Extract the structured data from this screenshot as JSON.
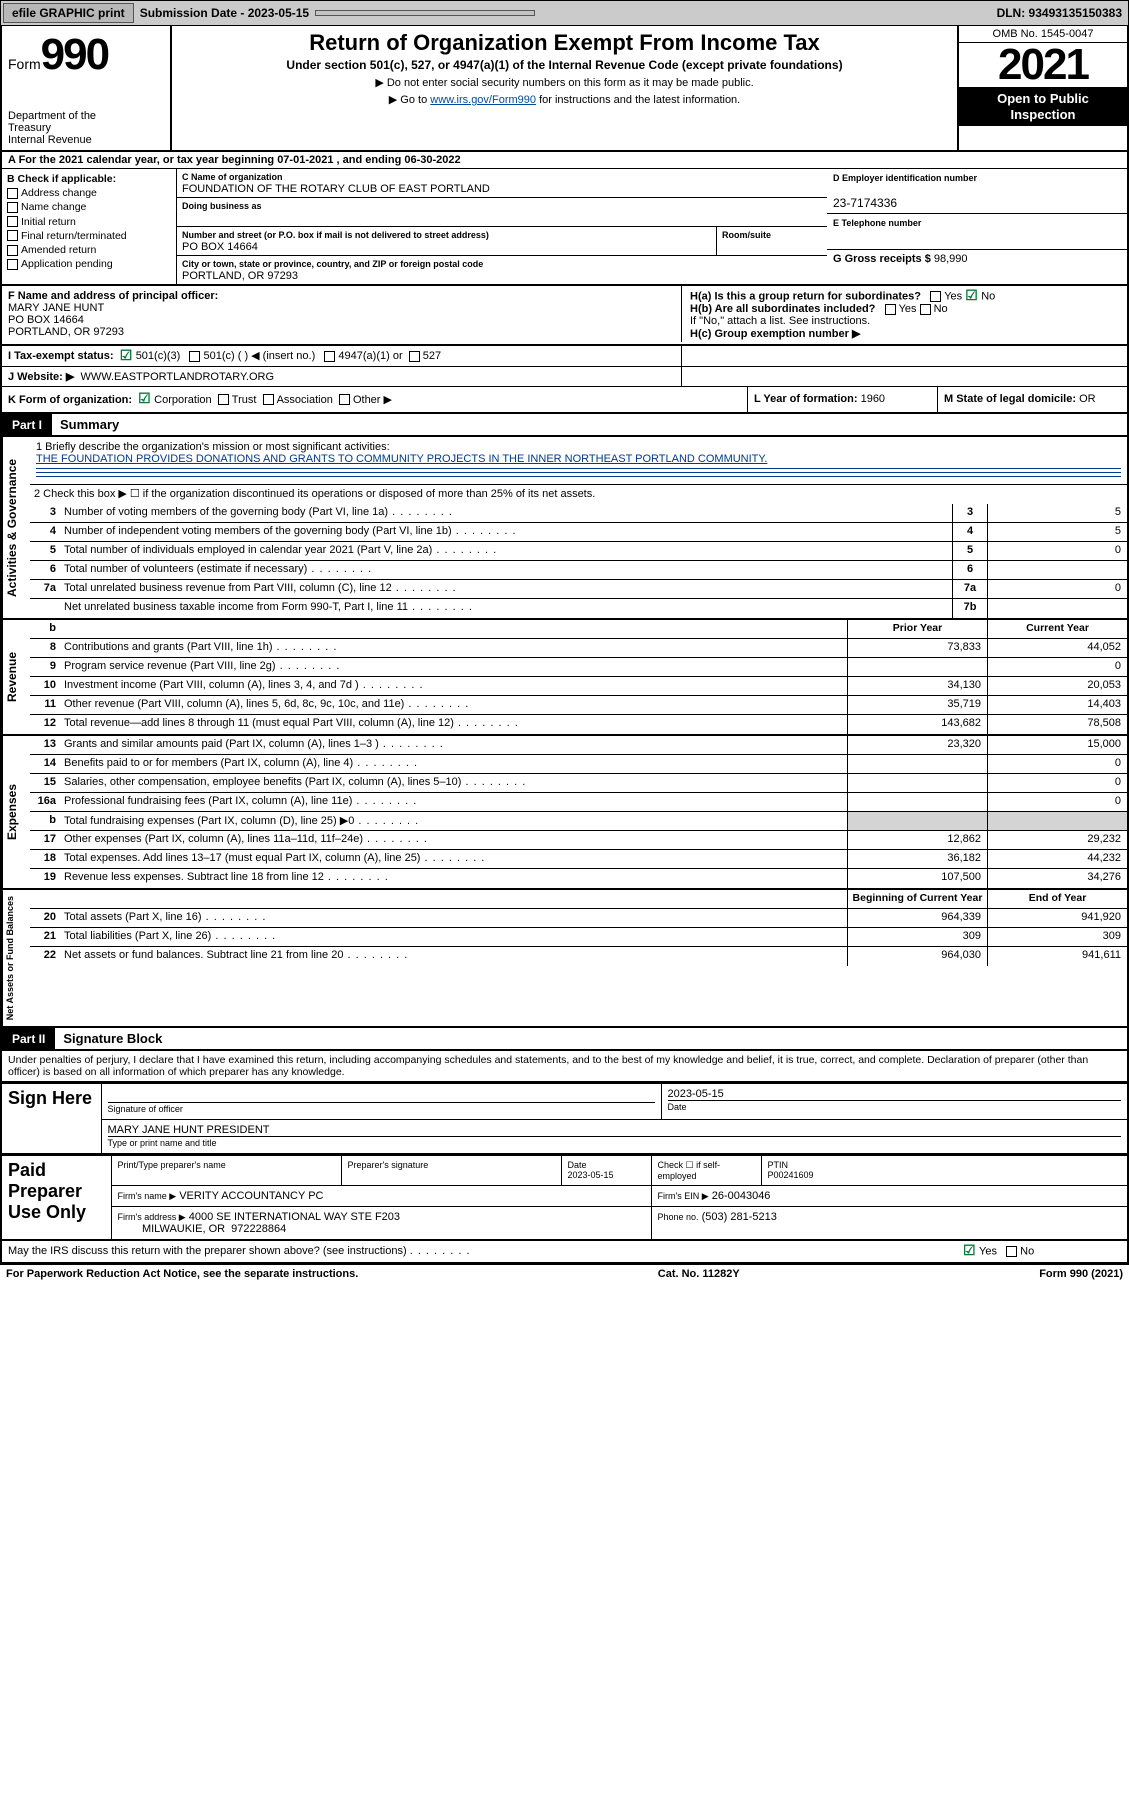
{
  "topbar": {
    "efile": "efile GRAPHIC print",
    "sub_label": "Submission Date - 2023-05-15",
    "dln": "DLN: 93493135150383"
  },
  "header": {
    "form_word": "Form",
    "form_num": "990",
    "dept": "Department of the Treasury\nInternal Revenue Service",
    "title": "Return of Organization Exempt From Income Tax",
    "subtitle": "Under section 501(c), 527, or 4947(a)(1) of the Internal Revenue Code (except private foundations)",
    "note1": "▶ Do not enter social security numbers on this form as it may be made public.",
    "note2_pre": "▶ Go to ",
    "note2_link": "www.irs.gov/Form990",
    "note2_post": " for instructions and the latest information.",
    "omb": "OMB No. 1545-0047",
    "year": "2021",
    "inspect": "Open to Public Inspection"
  },
  "periodA": "A For the 2021 calendar year, or tax year beginning 07-01-2021   , and ending 06-30-2022",
  "B": {
    "title": "B Check if applicable:",
    "items": [
      "Address change",
      "Name change",
      "Initial return",
      "Final return/terminated",
      "Amended return",
      "Application pending"
    ]
  },
  "C": {
    "name_lbl": "C Name of organization",
    "name": "FOUNDATION OF THE ROTARY CLUB OF EAST PORTLAND",
    "dba_lbl": "Doing business as",
    "dba": "",
    "addr_lbl": "Number and street (or P.O. box if mail is not delivered to street address)",
    "room_lbl": "Room/suite",
    "addr": "PO BOX 14664",
    "city_lbl": "City or town, state or province, country, and ZIP or foreign postal code",
    "city": "PORTLAND, OR  97293"
  },
  "D": {
    "lbl": "D Employer identification number",
    "val": "23-7174336"
  },
  "E": {
    "lbl": "E Telephone number",
    "val": ""
  },
  "G": {
    "lbl": "G Gross receipts $",
    "val": "98,990"
  },
  "F": {
    "lbl": "F Name and address of principal officer:",
    "name": "MARY JANE HUNT",
    "addr1": "PO BOX 14664",
    "addr2": "PORTLAND, OR  97293"
  },
  "H": {
    "a": "H(a)  Is this a group return for subordinates?",
    "a_yes": "Yes",
    "a_no": "No",
    "b": "H(b)  Are all subordinates included?",
    "b_yes": "Yes",
    "b_no": "No",
    "b_note": "If \"No,\" attach a list. See instructions.",
    "c": "H(c)  Group exemption number ▶"
  },
  "I": {
    "lbl": "I    Tax-exempt status:",
    "opts": [
      "501(c)(3)",
      "501(c) (  ) ◀ (insert no.)",
      "4947(a)(1) or",
      "527"
    ]
  },
  "J": {
    "lbl": "J    Website: ▶",
    "val": "WWW.EASTPORTLANDROTARY.ORG"
  },
  "K": {
    "lbl": "K Form of organization:",
    "opts": [
      "Corporation",
      "Trust",
      "Association",
      "Other ▶"
    ]
  },
  "L": {
    "lbl": "L Year of formation:",
    "val": "1960"
  },
  "M": {
    "lbl": "M State of legal domicile:",
    "val": "OR"
  },
  "part1": {
    "tab": "Part I",
    "title": "Summary"
  },
  "summary": {
    "mission_lbl": "1   Briefly describe the organization's mission or most significant activities:",
    "mission": "THE FOUNDATION PROVIDES DONATIONS AND GRANTS TO COMMUNITY PROJECTS IN THE INNER NORTHEAST PORTLAND COMMUNITY.",
    "line2": "2   Check this box ▶ ☐  if the organization discontinued its operations or disposed of more than 25% of its net assets.",
    "gov_lines": [
      {
        "n": "3",
        "t": "Number of voting members of the governing body (Part VI, line 1a)",
        "box": "3",
        "v": "5"
      },
      {
        "n": "4",
        "t": "Number of independent voting members of the governing body (Part VI, line 1b)",
        "box": "4",
        "v": "5"
      },
      {
        "n": "5",
        "t": "Total number of individuals employed in calendar year 2021 (Part V, line 2a)",
        "box": "5",
        "v": "0"
      },
      {
        "n": "6",
        "t": "Total number of volunteers (estimate if necessary)",
        "box": "6",
        "v": ""
      },
      {
        "n": "7a",
        "t": "Total unrelated business revenue from Part VIII, column (C), line 12",
        "box": "7a",
        "v": "0"
      },
      {
        "n": "",
        "t": "Net unrelated business taxable income from Form 990-T, Part I, line 11",
        "box": "7b",
        "v": ""
      }
    ],
    "col_hdr": {
      "b": "b",
      "py": "Prior Year",
      "cy": "Current Year"
    },
    "rev_lines": [
      {
        "n": "8",
        "t": "Contributions and grants (Part VIII, line 1h)",
        "py": "73,833",
        "cy": "44,052"
      },
      {
        "n": "9",
        "t": "Program service revenue (Part VIII, line 2g)",
        "py": "",
        "cy": "0"
      },
      {
        "n": "10",
        "t": "Investment income (Part VIII, column (A), lines 3, 4, and 7d )",
        "py": "34,130",
        "cy": "20,053"
      },
      {
        "n": "11",
        "t": "Other revenue (Part VIII, column (A), lines 5, 6d, 8c, 9c, 10c, and 11e)",
        "py": "35,719",
        "cy": "14,403"
      },
      {
        "n": "12",
        "t": "Total revenue—add lines 8 through 11 (must equal Part VIII, column (A), line 12)",
        "py": "143,682",
        "cy": "78,508"
      }
    ],
    "exp_lines": [
      {
        "n": "13",
        "t": "Grants and similar amounts paid (Part IX, column (A), lines 1–3 )",
        "py": "23,320",
        "cy": "15,000"
      },
      {
        "n": "14",
        "t": "Benefits paid to or for members (Part IX, column (A), line 4)",
        "py": "",
        "cy": "0"
      },
      {
        "n": "15",
        "t": "Salaries, other compensation, employee benefits (Part IX, column (A), lines 5–10)",
        "py": "",
        "cy": "0"
      },
      {
        "n": "16a",
        "t": "Professional fundraising fees (Part IX, column (A), line 11e)",
        "py": "",
        "cy": "0"
      },
      {
        "n": "b",
        "t": "Total fundraising expenses (Part IX, column (D), line 25) ▶0",
        "py": "shade",
        "cy": "shade"
      },
      {
        "n": "17",
        "t": "Other expenses (Part IX, column (A), lines 11a–11d, 11f–24e)",
        "py": "12,862",
        "cy": "29,232"
      },
      {
        "n": "18",
        "t": "Total expenses. Add lines 13–17 (must equal Part IX, column (A), line 25)",
        "py": "36,182",
        "cy": "44,232"
      },
      {
        "n": "19",
        "t": "Revenue less expenses. Subtract line 18 from line 12",
        "py": "107,500",
        "cy": "34,276"
      }
    ],
    "bal_hdr": {
      "py": "Beginning of Current Year",
      "cy": "End of Year"
    },
    "bal_lines": [
      {
        "n": "20",
        "t": "Total assets (Part X, line 16)",
        "py": "964,339",
        "cy": "941,920"
      },
      {
        "n": "21",
        "t": "Total liabilities (Part X, line 26)",
        "py": "309",
        "cy": "309"
      },
      {
        "n": "22",
        "t": "Net assets or fund balances. Subtract line 21 from line 20",
        "py": "964,030",
        "cy": "941,611"
      }
    ],
    "vtabs": {
      "gov": "Activities & Governance",
      "rev": "Revenue",
      "exp": "Expenses",
      "bal": "Net Assets or Fund Balances"
    }
  },
  "part2": {
    "tab": "Part II",
    "title": "Signature Block"
  },
  "declare": "Under penalties of perjury, I declare that I have examined this return, including accompanying schedules and statements, and to the best of my knowledge and belief, it is true, correct, and complete. Declaration of preparer (other than officer) is based on all information of which preparer has any knowledge.",
  "sign": {
    "here": "Sign Here",
    "sig_lbl": "Signature of officer",
    "date_lbl": "Date",
    "date": "2023-05-15",
    "name": "MARY JANE HUNT  PRESIDENT",
    "name_lbl": "Type or print name and title"
  },
  "paid": {
    "hdr": "Paid Preparer Use Only",
    "col1": "Print/Type preparer's name",
    "col2": "Preparer's signature",
    "col3": "Date",
    "date": "2023-05-15",
    "col4": "Check ☐ if self-employed",
    "col5": "PTIN",
    "ptin": "P00241609",
    "firm_lbl": "Firm's name    ▶",
    "firm": "VERITY ACCOUNTANCY PC",
    "ein_lbl": "Firm's EIN ▶",
    "ein": "26-0043046",
    "addr_lbl": "Firm's address ▶",
    "addr": "4000 SE INTERNATIONAL WAY STE F203\nMILWAUKIE, OR  972228864",
    "phone_lbl": "Phone no.",
    "phone": "(503) 281-5213"
  },
  "discuss": {
    "q": "May the IRS discuss this return with the preparer shown above? (see instructions)",
    "yes": "Yes",
    "no": "No"
  },
  "footer": {
    "left": "For Paperwork Reduction Act Notice, see the separate instructions.",
    "mid": "Cat. No. 11282Y",
    "right": "Form 990 (2021)"
  },
  "colors": {
    "topbar_bg": "#cbcbcb",
    "link": "#004b9b",
    "check": "#0a7a3a",
    "shade": "#d4d4d4"
  }
}
